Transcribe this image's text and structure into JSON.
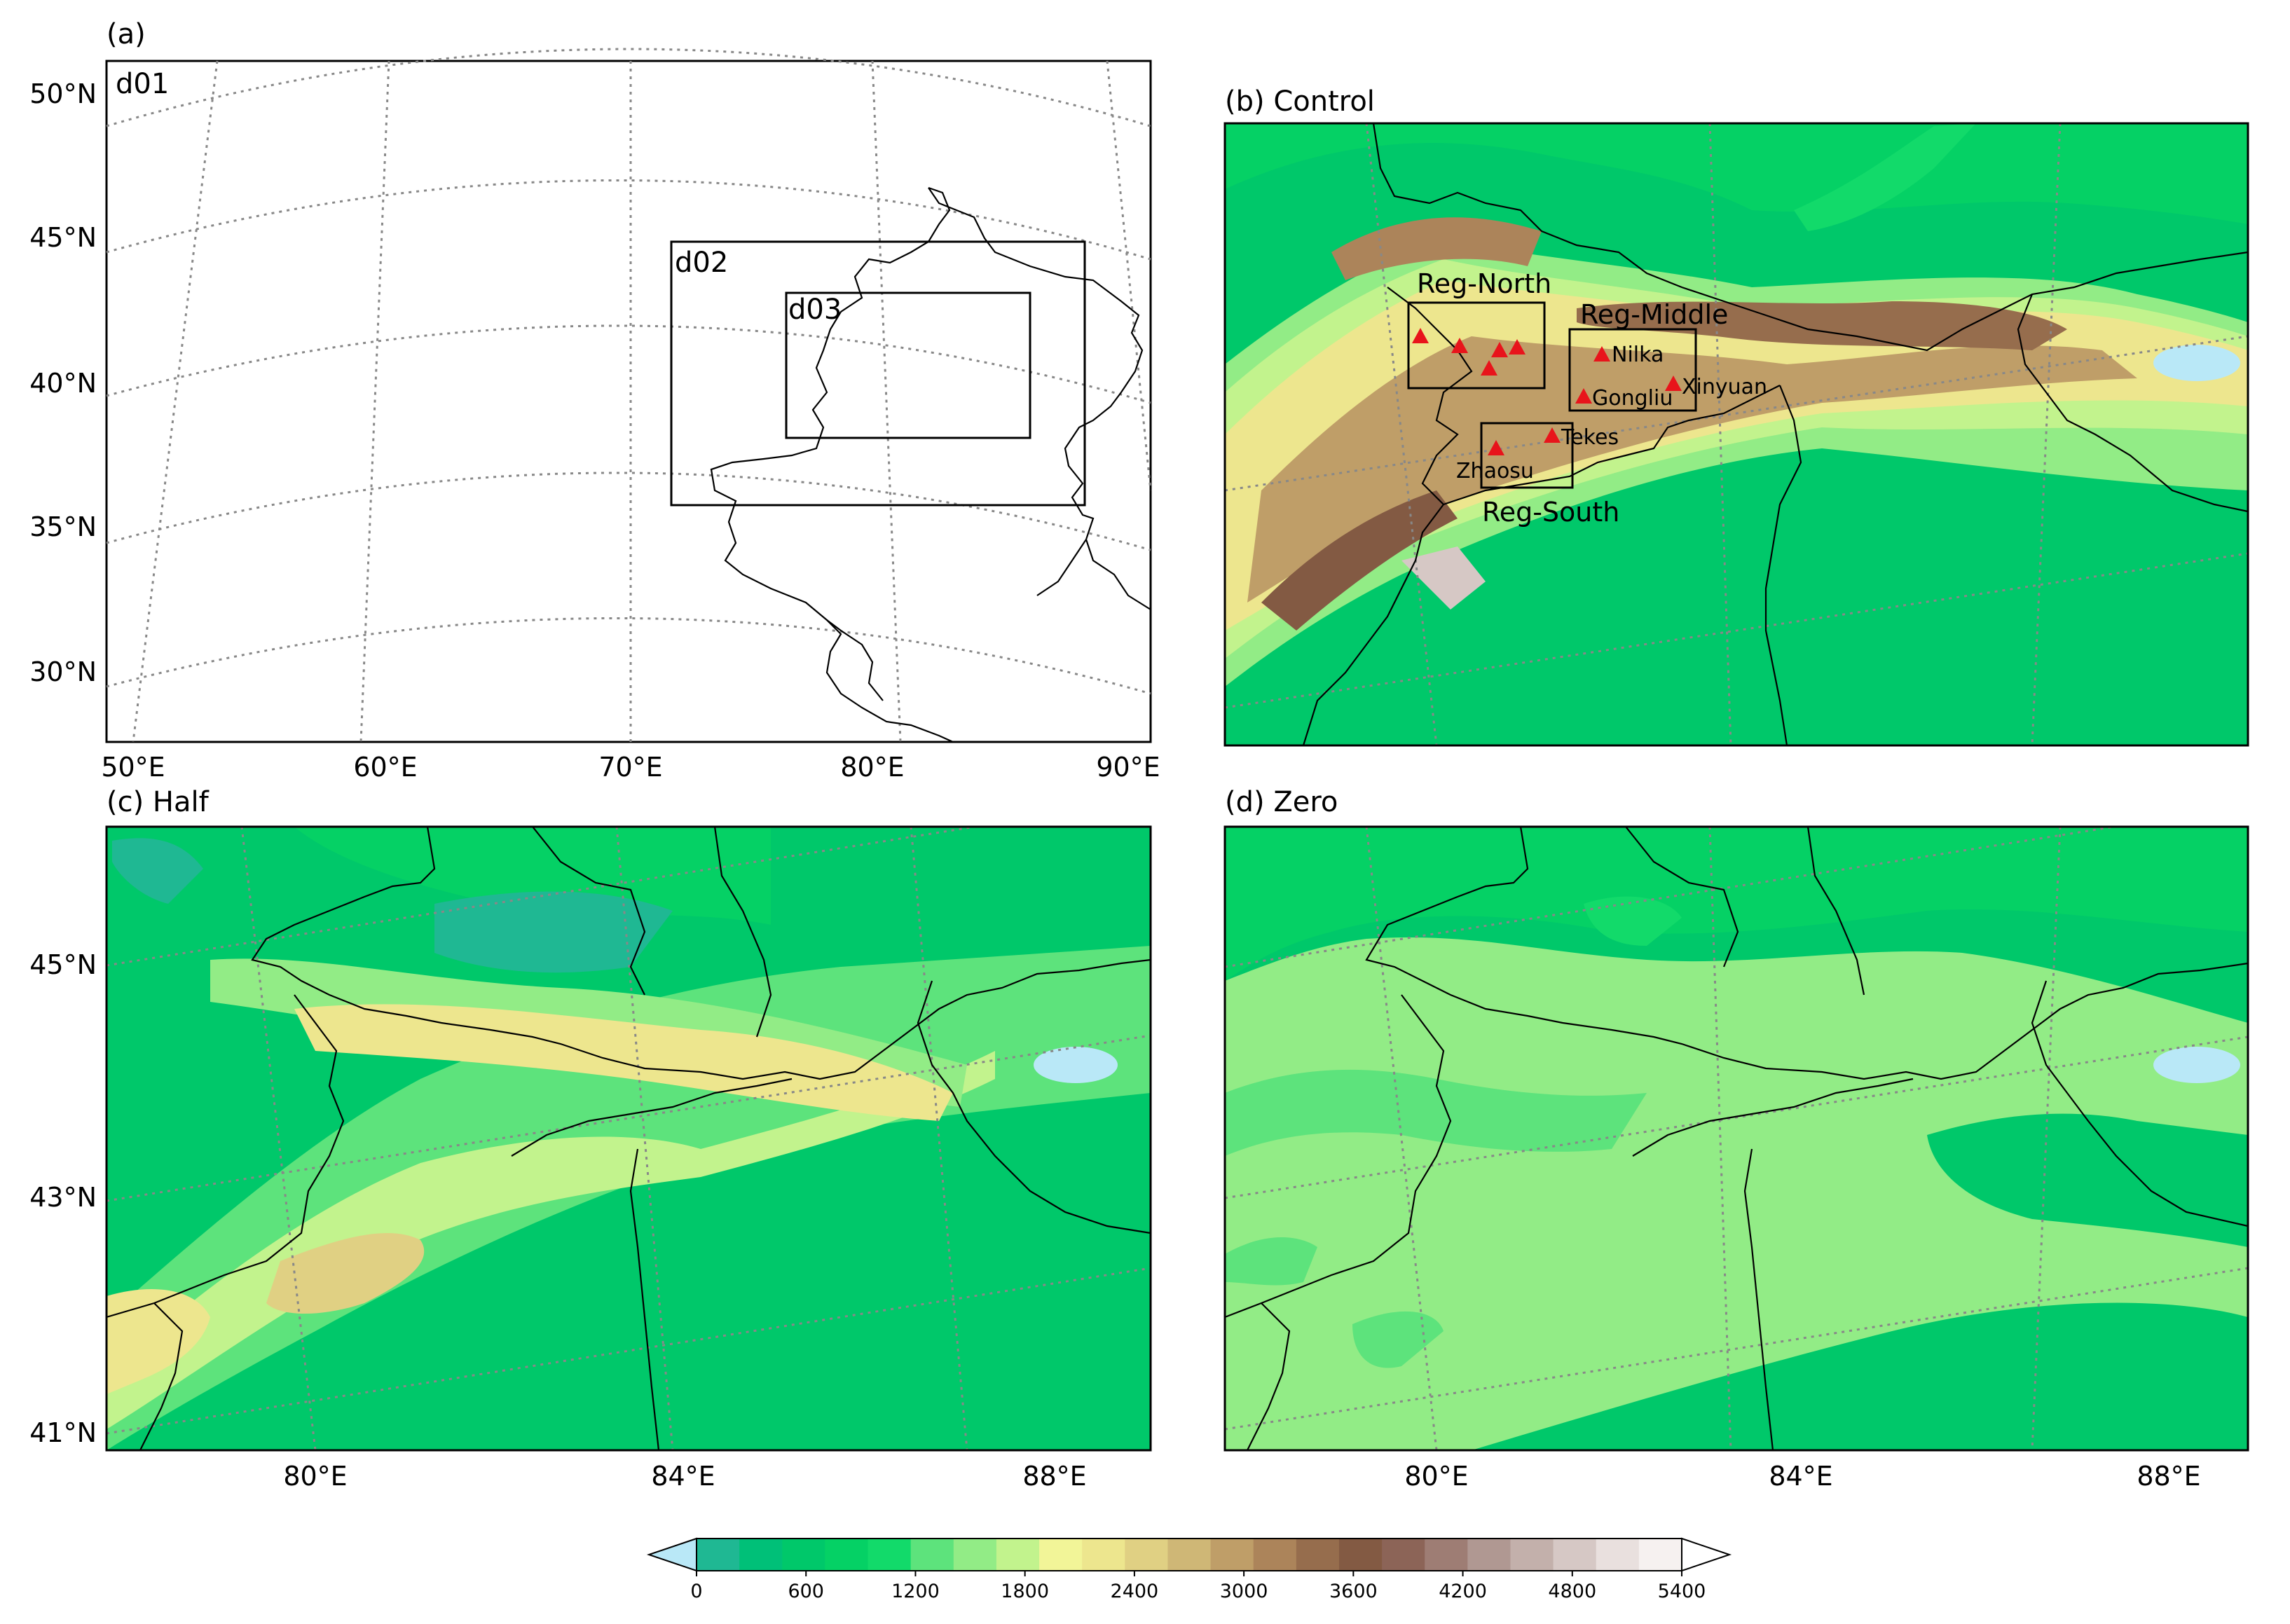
{
  "panels": {
    "a": {
      "title": "(a)",
      "domains": [
        "d01",
        "d02",
        "d03"
      ],
      "lat_labels": [
        "50°N",
        "45°N",
        "40°N",
        "35°N",
        "30°N"
      ],
      "lon_labels": [
        "50°E",
        "60°E",
        "70°E",
        "80°E",
        "90°E"
      ]
    },
    "b": {
      "title": "(b) Control",
      "regions": [
        "Reg-North",
        "Reg-Middle",
        "Reg-South"
      ],
      "stations": [
        "Nilka",
        "Xinyuan",
        "Gongliu",
        "Tekes",
        "Zhaosu"
      ]
    },
    "c": {
      "title": "(c) Half",
      "lat_labels": [
        "45°N",
        "43°N",
        "41°N"
      ],
      "lon_labels": [
        "80°E",
        "84°E",
        "88°E"
      ]
    },
    "d": {
      "title": "(d) Zero",
      "lon_labels": [
        "80°E",
        "84°E",
        "88°E"
      ]
    }
  },
  "colorbar": {
    "ticks": [
      "0",
      "600",
      "1200",
      "1800",
      "2400",
      "3000",
      "3600",
      "4200",
      "4800",
      "5400"
    ],
    "colors": [
      "#1fb893",
      "#00c078",
      "#00c86a",
      "#05d165",
      "#12da6a",
      "#5de37c",
      "#92ec86",
      "#c2f38d",
      "#f2f598",
      "#ede68e",
      "#e0d083",
      "#cfb776",
      "#bf9e68",
      "#ac845a",
      "#966d4d",
      "#835a43",
      "#8c6457",
      "#9e7d74",
      "#b09892",
      "#c3b0ab",
      "#d6c8c5",
      "#e9e0de",
      "#f6f1f0"
    ],
    "under_color": "#b9e8f7",
    "over_color": "#ffffff"
  }
}
